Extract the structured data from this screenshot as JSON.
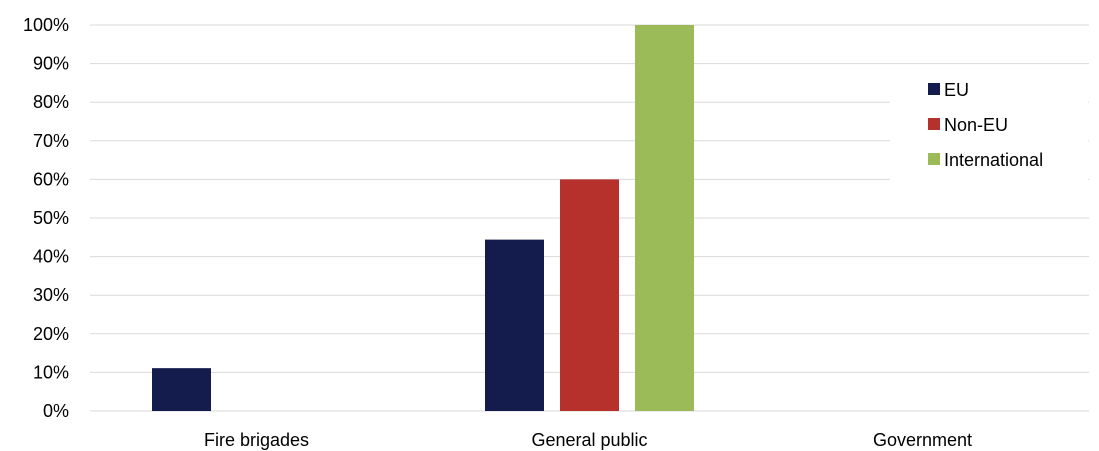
{
  "chart_data": {
    "type": "bar",
    "title": "",
    "xlabel": "",
    "ylabel": "",
    "categories": [
      "Fire brigades",
      "General public",
      "Government"
    ],
    "series": [
      {
        "name": "EU",
        "color": "#141c4e",
        "values": [
          11.1,
          44.4,
          0
        ]
      },
      {
        "name": "Non-EU",
        "color": "#b7312c",
        "values": [
          0,
          60,
          0
        ]
      },
      {
        "name": "International",
        "color": "#9bbb59",
        "values": [
          0,
          100,
          0
        ]
      }
    ],
    "ylim": [
      0,
      100
    ],
    "yticks": [
      "0%",
      "10%",
      "20%",
      "30%",
      "40%",
      "50%",
      "60%",
      "70%",
      "80%",
      "90%",
      "100%"
    ],
    "grid": true,
    "legend_position": "right",
    "gridline_color": "#d9d9d9"
  }
}
